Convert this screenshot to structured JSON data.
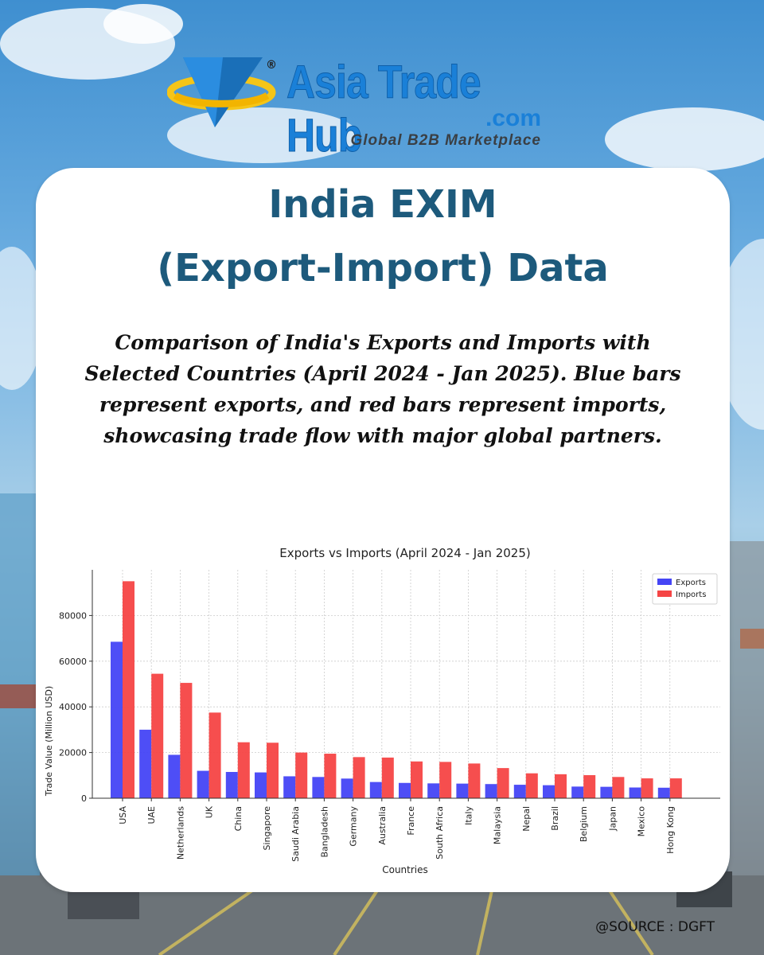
{
  "brand": {
    "name": "Asia Trade Hub",
    "domain": ".com",
    "tagline": "Global B2B Marketplace",
    "registered_mark": "®"
  },
  "card": {
    "title_line1": "India EXIM",
    "title_line2": "(Export-Import) Data",
    "description": "Comparison of India's Exports and Imports with Selected Countries (April 2024 - Jan 2025). Blue bars represent exports, and red bars represent imports, showcasing trade flow with major global partners."
  },
  "source": "@SOURCE : DGFT",
  "colors": {
    "exports": "#4545f5",
    "imports": "#f54545",
    "title": "#1d5a7c",
    "logo": "#1a80d8"
  },
  "chart_data": {
    "type": "bar",
    "title": "Exports vs Imports (April 2024 - Jan 2025)",
    "xlabel": "Countries",
    "ylabel": "Trade Value (Million USD)",
    "ylim": [
      0,
      100000
    ],
    "yticks": [
      0,
      20000,
      40000,
      60000,
      80000
    ],
    "grid": true,
    "legend_position": "top-right",
    "categories": [
      "USA",
      "UAE",
      "Netherlands",
      "UK",
      "China",
      "Singapore",
      "Saudi Arabia",
      "Bangladesh",
      "Germany",
      "Australia",
      "France",
      "South Africa",
      "Italy",
      "Malaysia",
      "Nepal",
      "Brazil",
      "Belgium",
      "Japan",
      "Mexico",
      "Hong Kong"
    ],
    "series": [
      {
        "name": "Exports",
        "values": [
          68500,
          30000,
          19000,
          12000,
          11500,
          11300,
          9600,
          9300,
          8600,
          7100,
          6700,
          6500,
          6400,
          6200,
          5900,
          5700,
          5100,
          5000,
          4700,
          4600
        ]
      },
      {
        "name": "Imports",
        "values": [
          95000,
          54500,
          50500,
          37500,
          24500,
          24300,
          20000,
          19500,
          18000,
          17800,
          16100,
          15900,
          15200,
          13200,
          10900,
          10500,
          10100,
          9300,
          8700,
          8700
        ]
      }
    ]
  }
}
